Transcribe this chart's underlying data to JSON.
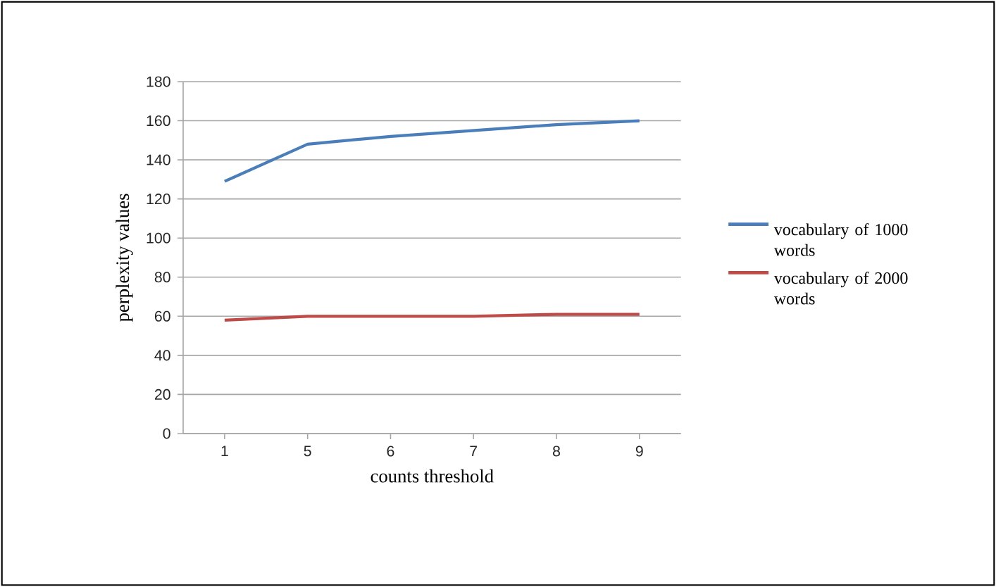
{
  "chart_data": {
    "type": "line",
    "xlabel": "counts threshold",
    "ylabel": "perplexity values",
    "categories": [
      "1",
      "5",
      "6",
      "7",
      "8",
      "9"
    ],
    "series": [
      {
        "name": "vocabulary of 1000 words",
        "color": "#4a7ebb",
        "values": [
          129,
          148,
          152,
          155,
          158,
          160
        ]
      },
      {
        "name": "vocabulary of 2000 words",
        "color": "#be4b48",
        "values": [
          58,
          60,
          60,
          60,
          61,
          61
        ]
      }
    ],
    "ylim": [
      0,
      180
    ],
    "yticks": [
      0,
      20,
      40,
      60,
      80,
      100,
      120,
      140,
      160,
      180
    ],
    "grid": "y",
    "legend": "right"
  }
}
